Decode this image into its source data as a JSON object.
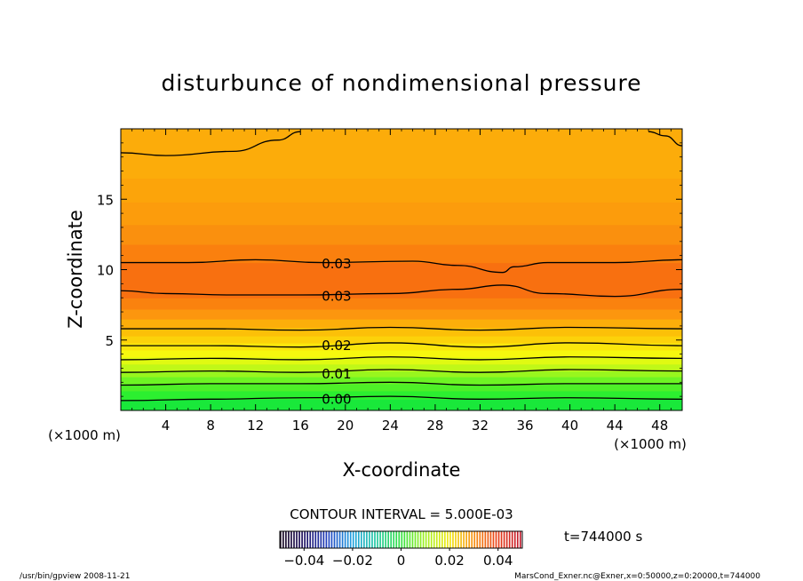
{
  "chart_data": {
    "type": "contour",
    "title": "disturbunce of nondimensional pressure",
    "xlabel": "X-coordinate",
    "ylabel": "Z-coordinate",
    "x_unit_left": "(×1000 m)",
    "x_unit_right": "(×1000 m)",
    "xlim": [
      0,
      50
    ],
    "ylim": [
      0,
      20
    ],
    "x_ticks": [
      "4",
      "8",
      "12",
      "16",
      "20",
      "24",
      "28",
      "32",
      "36",
      "40",
      "44",
      "48"
    ],
    "x_tick_values": [
      4,
      8,
      12,
      16,
      20,
      24,
      28,
      32,
      36,
      40,
      44,
      48
    ],
    "y_ticks": [
      "5",
      "10",
      "15"
    ],
    "y_tick_values": [
      5,
      10,
      15
    ],
    "contour_interval_text": "CONTOUR INTERVAL = 5.000E-03",
    "contour_labels": [
      {
        "text": "0.03",
        "x": 17.5,
        "y": 10.4
      },
      {
        "text": "0.03",
        "x": 17.5,
        "y": 8.1
      },
      {
        "text": "0.02",
        "x": 17.5,
        "y": 4.6
      },
      {
        "text": "0.01",
        "x": 17.5,
        "y": 2.6
      },
      {
        "text": "0.00",
        "x": 17.5,
        "y": 0.8
      }
    ],
    "contour_lines": [
      {
        "level": 0.0,
        "points": [
          [
            0,
            0.7
          ],
          [
            8,
            0.8
          ],
          [
            16,
            0.9
          ],
          [
            24,
            1.0
          ],
          [
            32,
            0.8
          ],
          [
            40,
            0.9
          ],
          [
            50,
            0.8
          ]
        ]
      },
      {
        "level": 0.005,
        "points": [
          [
            0,
            1.8
          ],
          [
            8,
            1.9
          ],
          [
            16,
            1.9
          ],
          [
            24,
            2.0
          ],
          [
            32,
            1.8
          ],
          [
            40,
            1.9
          ],
          [
            50,
            1.9
          ]
        ]
      },
      {
        "level": 0.01,
        "points": [
          [
            0,
            2.7
          ],
          [
            8,
            2.8
          ],
          [
            16,
            2.7
          ],
          [
            24,
            2.9
          ],
          [
            32,
            2.7
          ],
          [
            40,
            2.9
          ],
          [
            50,
            2.8
          ]
        ]
      },
      {
        "level": 0.015,
        "points": [
          [
            0,
            3.6
          ],
          [
            8,
            3.7
          ],
          [
            16,
            3.6
          ],
          [
            24,
            3.8
          ],
          [
            32,
            3.6
          ],
          [
            40,
            3.8
          ],
          [
            50,
            3.7
          ]
        ]
      },
      {
        "level": 0.02,
        "points": [
          [
            0,
            4.6
          ],
          [
            8,
            4.6
          ],
          [
            16,
            4.5
          ],
          [
            24,
            4.8
          ],
          [
            32,
            4.5
          ],
          [
            40,
            4.8
          ],
          [
            50,
            4.6
          ]
        ]
      },
      {
        "level": 0.025,
        "points": [
          [
            0,
            5.8
          ],
          [
            8,
            5.8
          ],
          [
            16,
            5.7
          ],
          [
            24,
            5.9
          ],
          [
            32,
            5.7
          ],
          [
            40,
            5.9
          ],
          [
            50,
            5.8
          ]
        ]
      },
      {
        "level": 0.03,
        "points": [
          [
            0,
            8.5
          ],
          [
            4,
            8.3
          ],
          [
            10,
            8.2
          ],
          [
            16,
            8.2
          ],
          [
            24,
            8.3
          ],
          [
            30,
            8.6
          ],
          [
            34,
            8.9
          ],
          [
            38,
            8.3
          ],
          [
            44,
            8.1
          ],
          [
            50,
            8.6
          ]
        ]
      },
      {
        "level": 0.03,
        "points": [
          [
            0,
            10.5
          ],
          [
            6,
            10.5
          ],
          [
            12,
            10.7
          ],
          [
            18,
            10.5
          ],
          [
            26,
            10.6
          ],
          [
            30,
            10.3
          ],
          [
            34,
            9.8
          ],
          [
            35,
            10.2
          ],
          [
            38,
            10.5
          ],
          [
            44,
            10.5
          ],
          [
            50,
            10.7
          ]
        ]
      },
      {
        "level": 0.025,
        "points": [
          [
            0,
            18.3
          ],
          [
            4,
            18.1
          ],
          [
            10,
            18.4
          ],
          [
            14,
            19.2
          ],
          [
            16,
            19.8
          ]
        ]
      },
      {
        "level": 0.025,
        "points": [
          [
            47,
            19.8
          ],
          [
            48.5,
            19.5
          ],
          [
            50,
            18.8
          ]
        ]
      }
    ],
    "bands": [
      {
        "lo": 0.0,
        "hi": 0.8,
        "color": "#19e83a"
      },
      {
        "lo": 0.8,
        "hi": 1.4,
        "color": "#2cef30"
      },
      {
        "lo": 1.4,
        "hi": 1.9,
        "color": "#4ef028"
      },
      {
        "lo": 1.9,
        "hi": 2.4,
        "color": "#6ef424"
      },
      {
        "lo": 2.4,
        "hi": 2.8,
        "color": "#98f61e"
      },
      {
        "lo": 2.8,
        "hi": 3.3,
        "color": "#c0f818"
      },
      {
        "lo": 3.3,
        "hi": 3.8,
        "color": "#e0fa12"
      },
      {
        "lo": 3.8,
        "hi": 4.3,
        "color": "#f6f80e"
      },
      {
        "lo": 4.3,
        "hi": 4.8,
        "color": "#fae60c"
      },
      {
        "lo": 4.8,
        "hi": 5.3,
        "color": "#fcd20a"
      },
      {
        "lo": 5.3,
        "hi": 5.9,
        "color": "#fcc008"
      },
      {
        "lo": 5.9,
        "hi": 6.5,
        "color": "#fcae0a"
      },
      {
        "lo": 6.5,
        "hi": 7.2,
        "color": "#fc960e"
      },
      {
        "lo": 7.2,
        "hi": 8.0,
        "color": "#fa820e"
      },
      {
        "lo": 8.0,
        "hi": 10.5,
        "color": "#f87010"
      },
      {
        "lo": 10.5,
        "hi": 11.8,
        "color": "#fa800e"
      },
      {
        "lo": 11.8,
        "hi": 13.2,
        "color": "#fa900e"
      },
      {
        "lo": 13.2,
        "hi": 14.8,
        "color": "#fc9c0c"
      },
      {
        "lo": 14.8,
        "hi": 16.5,
        "color": "#fca40a"
      },
      {
        "lo": 16.5,
        "hi": 20.0,
        "color": "#fcac0a"
      }
    ],
    "colorbar": {
      "min": -0.05,
      "max": 0.05,
      "ticks": [
        "−0.04",
        "−0.02",
        "0",
        "0.02",
        "0.04"
      ],
      "tick_values": [
        -0.04,
        -0.02,
        0,
        0.02,
        0.04
      ],
      "stops": [
        {
          "v": -0.05,
          "color": "#1a0a1e"
        },
        {
          "v": -0.04,
          "color": "#201060"
        },
        {
          "v": -0.03,
          "color": "#2040c0"
        },
        {
          "v": -0.02,
          "color": "#20a0e0"
        },
        {
          "v": -0.01,
          "color": "#20c8a0"
        },
        {
          "v": 0.0,
          "color": "#30e040"
        },
        {
          "v": 0.01,
          "color": "#a0f020"
        },
        {
          "v": 0.02,
          "color": "#f0e810"
        },
        {
          "v": 0.03,
          "color": "#f89010"
        },
        {
          "v": 0.04,
          "color": "#e84018"
        },
        {
          "v": 0.05,
          "color": "#c01830"
        }
      ]
    },
    "time_label": "t=744000 s",
    "footer_left": "/usr/bin/gpview   2008-11-21",
    "footer_right": "MarsCond_Exner.nc@Exner,x=0:50000,z=0:20000,t=744000"
  }
}
